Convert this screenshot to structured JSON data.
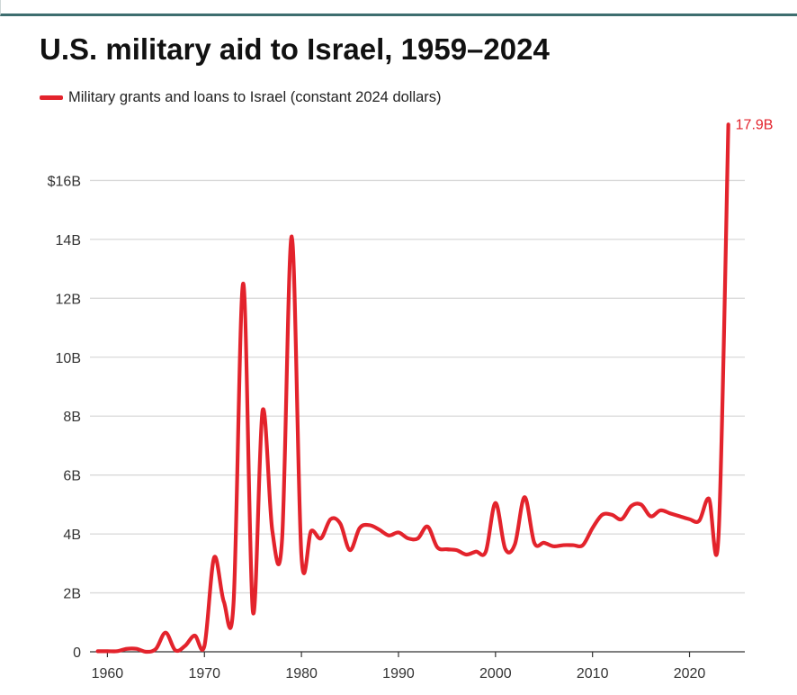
{
  "colors": {
    "series": "#e3232c",
    "grid": "#d9d9d9",
    "axis": "#333333",
    "header_rule": "#3e6e6f"
  },
  "chart_data": {
    "type": "line",
    "title": "U.S. military aid to Israel, 1959–2024",
    "xlabel": "",
    "ylabel": "",
    "xlim": [
      1958.2,
      2025.7
    ],
    "ylim": [
      0,
      18
    ],
    "grid": true,
    "legend_position": "top-left",
    "x_ticks": [
      {
        "value": 1960,
        "label": "1960"
      },
      {
        "value": 1970,
        "label": "1970"
      },
      {
        "value": 1980,
        "label": "1980"
      },
      {
        "value": 1990,
        "label": "1990"
      },
      {
        "value": 2000,
        "label": "2000"
      },
      {
        "value": 2010,
        "label": "2010"
      },
      {
        "value": 2020,
        "label": "2020"
      }
    ],
    "y_ticks": [
      {
        "value": 0,
        "label": "0"
      },
      {
        "value": 2,
        "label": "2B"
      },
      {
        "value": 4,
        "label": "4B"
      },
      {
        "value": 6,
        "label": "6B"
      },
      {
        "value": 8,
        "label": "8B"
      },
      {
        "value": 10,
        "label": "10B"
      },
      {
        "value": 12,
        "label": "12B"
      },
      {
        "value": 14,
        "label": "14B"
      },
      {
        "value": 16,
        "label": "$16B"
      }
    ],
    "series": [
      {
        "name": "Military grants and loans to Israel (constant 2024 dollars)",
        "end_label": "17.9B",
        "x": [
          1959,
          1960,
          1961,
          1962,
          1963,
          1964,
          1965,
          1966,
          1967,
          1968,
          1969,
          1970,
          1971,
          1972,
          1973,
          1974,
          1975,
          1976,
          1977,
          1978,
          1979,
          1980,
          1981,
          1982,
          1983,
          1984,
          1985,
          1986,
          1987,
          1988,
          1989,
          1990,
          1991,
          1992,
          1993,
          1994,
          1995,
          1996,
          1997,
          1998,
          1999,
          2000,
          2001,
          2002,
          2003,
          2004,
          2005,
          2006,
          2007,
          2008,
          2009,
          2010,
          2011,
          2012,
          2013,
          2014,
          2015,
          2016,
          2017,
          2018,
          2019,
          2020,
          2021,
          2022,
          2023,
          2024
        ],
        "values": [
          0.02,
          0.02,
          0.02,
          0.1,
          0.1,
          0.0,
          0.1,
          0.65,
          0.05,
          0.2,
          0.55,
          0.2,
          3.2,
          1.7,
          1.65,
          12.5,
          1.35,
          8.2,
          4.1,
          3.8,
          14.1,
          3.25,
          4.1,
          3.85,
          4.5,
          4.35,
          3.45,
          4.2,
          4.3,
          4.15,
          3.95,
          4.05,
          3.85,
          3.85,
          4.25,
          3.55,
          3.48,
          3.45,
          3.3,
          3.4,
          3.4,
          5.05,
          3.5,
          3.65,
          5.25,
          3.7,
          3.7,
          3.58,
          3.62,
          3.62,
          3.62,
          4.2,
          4.65,
          4.65,
          4.5,
          4.95,
          5.0,
          4.6,
          4.8,
          4.7,
          4.6,
          4.5,
          4.45,
          5.2,
          4.0,
          17.9
        ]
      }
    ]
  }
}
